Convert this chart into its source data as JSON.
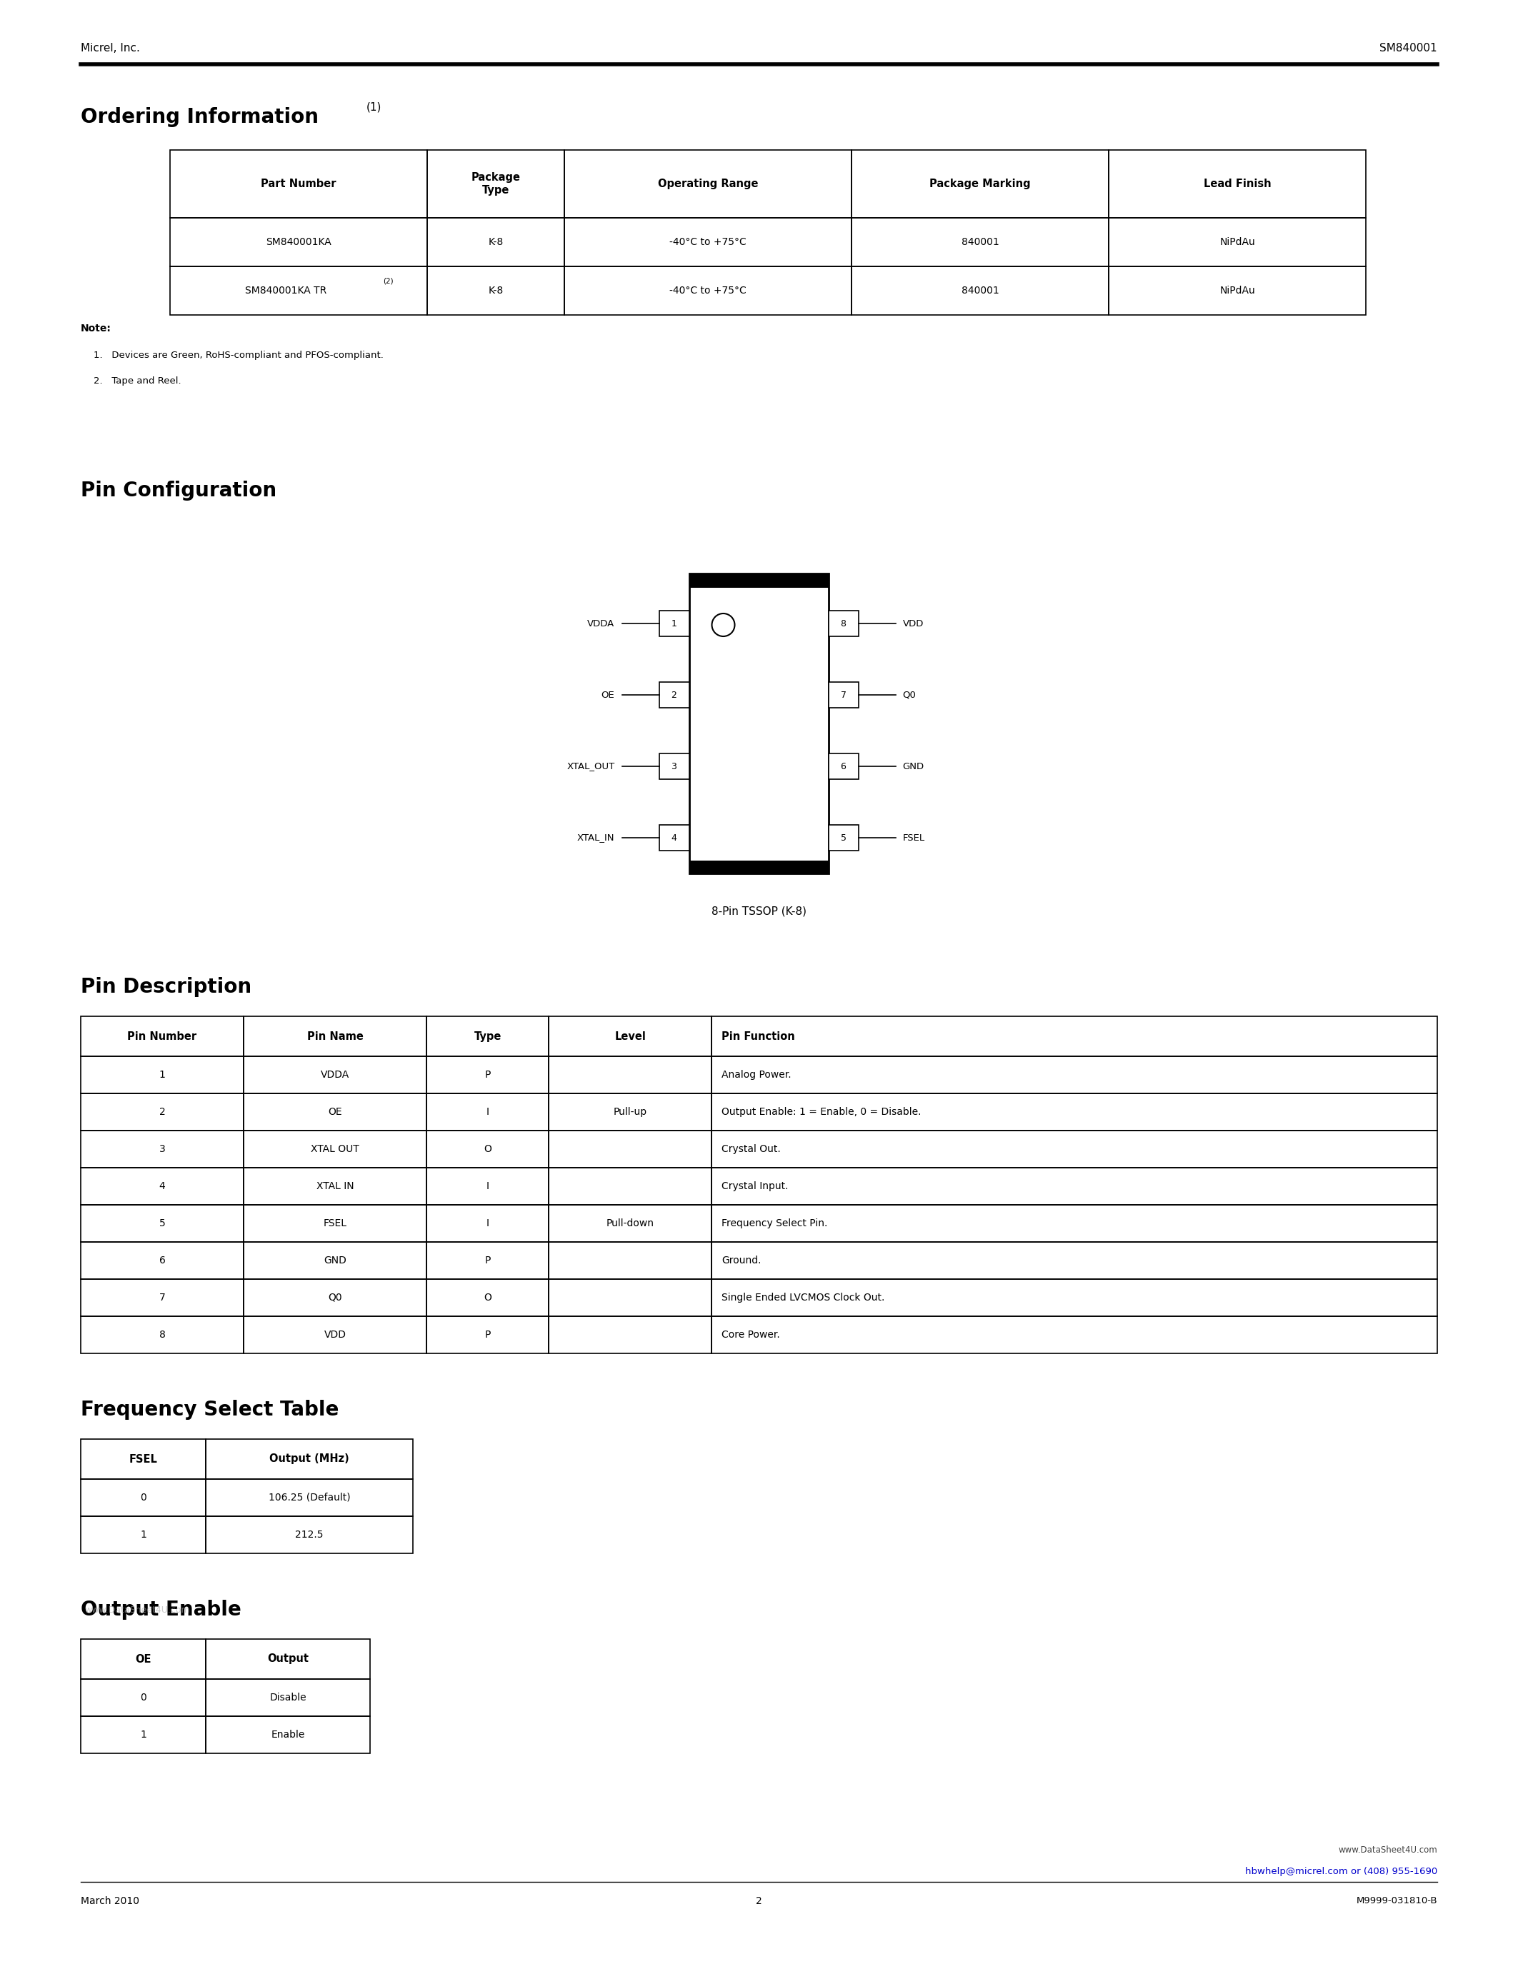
{
  "bg_color": "#ffffff",
  "header_left": "Micrel, Inc.",
  "header_right": "SM840001",
  "section1_title": "Ordering Information",
  "section1_superscript": "(1)",
  "ordering_headers": [
    "Part Number",
    "Package\nType",
    "Operating Range",
    "Package Marking",
    "Lead Finish"
  ],
  "ordering_rows": [
    [
      "SM840001KA",
      "K-8",
      "-40°C to +75°C",
      "840001",
      "NiPdAu"
    ],
    [
      "SM840001KA TR",
      "K-8",
      "-40°C to +75°C",
      "840001",
      "NiPdAu"
    ]
  ],
  "note_label": "Note:",
  "notes": [
    "1.   Devices are Green, RoHS-compliant and PFOS-compliant.",
    "2.   Tape and Reel."
  ],
  "section2_title": "Pin Configuration",
  "pin_caption": "8-Pin TSSOP (K-8)",
  "left_pins": [
    "VDDA",
    "OE",
    "XTAL_OUT",
    "XTAL_IN"
  ],
  "right_pins": [
    "VDD",
    "Q0",
    "GND",
    "FSEL"
  ],
  "left_pin_nums": [
    "1",
    "2",
    "3",
    "4"
  ],
  "right_pin_nums": [
    "8",
    "7",
    "6",
    "5"
  ],
  "section3_title": "Pin Description",
  "pin_desc_headers": [
    "Pin Number",
    "Pin Name",
    "Type",
    "Level",
    "Pin Function"
  ],
  "pin_desc_rows": [
    [
      "1",
      "VDDA",
      "P",
      "",
      "Analog Power."
    ],
    [
      "2",
      "OE",
      "I",
      "Pull-up",
      "Output Enable: 1 = Enable, 0 = Disable."
    ],
    [
      "3",
      "XTAL OUT",
      "O",
      "",
      "Crystal Out."
    ],
    [
      "4",
      "XTAL IN",
      "I",
      "",
      "Crystal Input."
    ],
    [
      "5",
      "FSEL",
      "I",
      "Pull-down",
      "Frequency Select Pin."
    ],
    [
      "6",
      "GND",
      "P",
      "",
      "Ground."
    ],
    [
      "7",
      "Q0",
      "O",
      "",
      "Single Ended LVCMOS Clock Out."
    ],
    [
      "8",
      "VDD",
      "P",
      "",
      "Core Power."
    ]
  ],
  "section4_title": "Frequency Select Table",
  "freq_headers": [
    "FSEL",
    "Output (MHz)"
  ],
  "freq_rows": [
    [
      "0",
      "106.25 (Default)"
    ],
    [
      "1",
      "212.5"
    ]
  ],
  "section5_title": "Output Enable",
  "oe_headers": [
    "OE",
    "Output"
  ],
  "oe_rows": [
    [
      "0",
      "Disable"
    ],
    [
      "1",
      "Enable"
    ]
  ],
  "footer_left": "March 2010",
  "footer_center": "2",
  "footer_right1": "M9999-031810-B",
  "footer_right2": "hbwhelp@micrel.com or (408) 955-1690",
  "footer_right3": "www.DataSheet4U.com",
  "watermark": "www.DataSheet4U.com"
}
